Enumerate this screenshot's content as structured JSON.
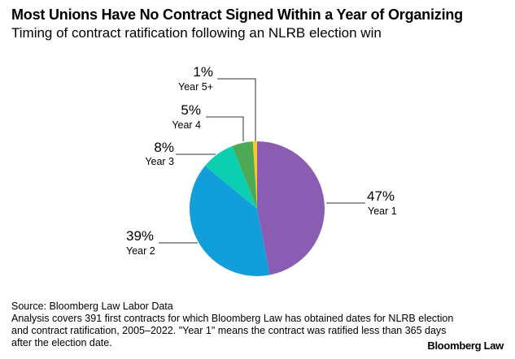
{
  "title": "Most Unions Have No Contract Signed Within a Year of Organizing",
  "subtitle": "Timing of contract ratification following an NLRB election win",
  "chart_data": {
    "type": "pie",
    "categories": [
      "Year 1",
      "Year 2",
      "Year 3",
      "Year 4",
      "Year 5+"
    ],
    "values": [
      47,
      39,
      8,
      5,
      1
    ],
    "value_labels": [
      "47%",
      "39%",
      "8%",
      "5%",
      "1%"
    ],
    "colors": [
      "#8a5db3",
      "#119edb",
      "#0ccfb2",
      "#4caa55",
      "#f9c923"
    ],
    "start": "top, clockwise"
  },
  "source": "Source: Bloomberg Law Labor Data",
  "note": "Analysis covers 391 first contracts for which Bloomberg Law has obtained dates for NLRB election and contract ratification, 2005–2022. \"Year 1\" means the contract was ratified less than 365 days after the election date.",
  "logo": "Bloomberg Law"
}
